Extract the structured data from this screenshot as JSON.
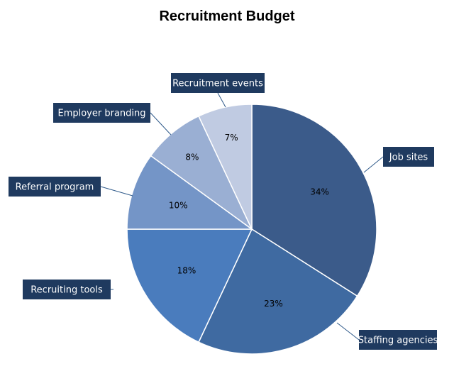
{
  "chart_data": {
    "type": "pie",
    "title": "Recruitment Budget",
    "slices": [
      {
        "label": "Job sites",
        "value": 34,
        "value_label": "34%",
        "color": "#3b5b8a"
      },
      {
        "label": "Staffing agencies",
        "value": 23,
        "value_label": "23%",
        "color": "#3f6aa1"
      },
      {
        "label": "Recruiting tools",
        "value": 18,
        "value_label": "18%",
        "color": "#4a7cbd"
      },
      {
        "label": "Referral program",
        "value": 10,
        "value_label": "10%",
        "color": "#7495c7"
      },
      {
        "label": "Employer branding",
        "value": 8,
        "value_label": "8%",
        "color": "#9aafd3"
      },
      {
        "label": "Recruitment events",
        "value": 7,
        "value_label": "7%",
        "color": "#c0cbe2"
      }
    ],
    "callout_box_color": "#1f3a5f",
    "callout_text_color": "#ffffff",
    "slice_border_color": "#ffffff"
  }
}
